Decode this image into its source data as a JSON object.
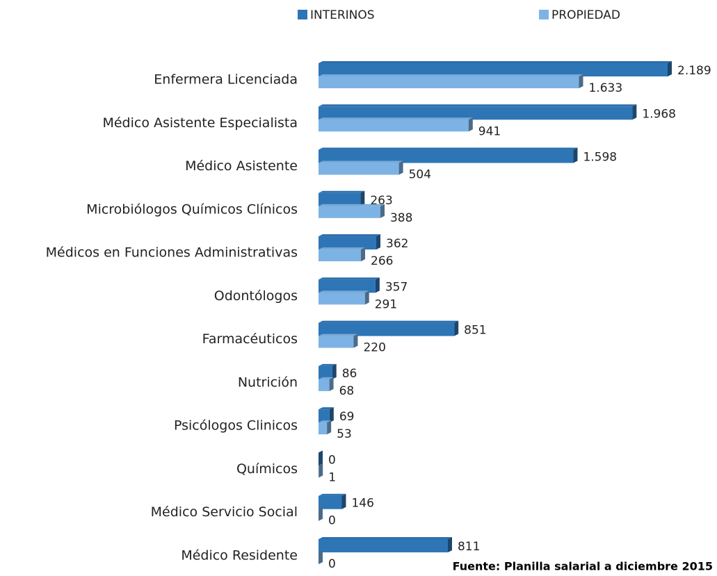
{
  "chart_data": {
    "type": "bar",
    "orientation": "horizontal",
    "categories": [
      "Enfermera  Licenciada",
      "Médico Asistente Especialista",
      "Médico Asistente",
      "Microbiólogos Químicos Clínicos",
      "Médicos en Funciones Administrativas",
      "Odontólogos",
      "Farmacéuticos",
      "Nutrición",
      "Psicólogos Clinicos",
      "Químicos",
      "Médico Servicio  Social",
      "Médico Residente"
    ],
    "series": [
      {
        "name": "INTERINOS",
        "color": "#2e75b6",
        "values": [
          2189,
          1968,
          1598,
          263,
          362,
          357,
          851,
          86,
          69,
          0,
          146,
          811
        ],
        "value_labels": [
          "2.189",
          "1.968",
          "1.598",
          "263",
          "362",
          "357",
          "851",
          "86",
          "69",
          "0",
          "146",
          "811"
        ]
      },
      {
        "name": "PROPIEDAD",
        "color": "#7db3e4",
        "values": [
          1633,
          941,
          504,
          388,
          266,
          291,
          220,
          68,
          53,
          1,
          0,
          0
        ],
        "value_labels": [
          "1.633",
          "941",
          "504",
          "388",
          "266",
          "291",
          "220",
          "68",
          "53",
          "1",
          "0",
          "0"
        ]
      }
    ],
    "note": "Fuente: Planilla salarial a diciembre 2015"
  }
}
